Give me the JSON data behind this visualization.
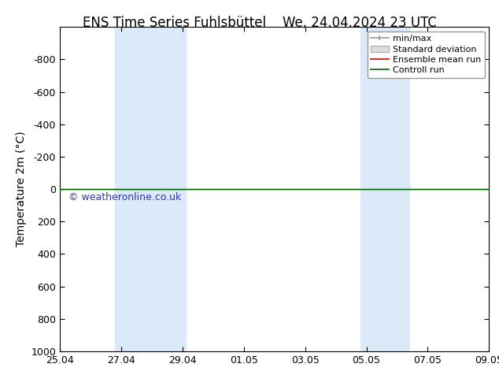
{
  "title_left": "ENS Time Series Fuhlsbüttel",
  "title_right": "We. 24.04.2024 23 UTC",
  "ylabel": "Temperature 2m (°C)",
  "ylim_bottom": 1000,
  "ylim_top": -1000,
  "yticks": [
    -800,
    -600,
    -400,
    -200,
    0,
    200,
    400,
    600,
    800,
    1000
  ],
  "xtick_labels": [
    "25.04",
    "27.04",
    "29.04",
    "01.05",
    "03.05",
    "05.05",
    "07.05",
    "09.05"
  ],
  "xtick_positions": [
    0,
    2,
    4,
    6,
    8,
    10,
    12,
    14
  ],
  "x_start": 0,
  "x_end": 14,
  "shaded_bands": [
    {
      "x_start": 1.8,
      "x_end": 2.6
    },
    {
      "x_start": 2.6,
      "x_end": 4.1
    },
    {
      "x_start": 9.8,
      "x_end": 10.6
    },
    {
      "x_start": 10.6,
      "x_end": 11.4
    }
  ],
  "shaded_color": "#daeaf8",
  "ensemble_mean_color": "#cc0000",
  "control_run_color": "#006600",
  "watermark_text": "© weatheronline.co.uk",
  "watermark_color": "#3333bb",
  "background_color": "#ffffff",
  "legend_items": [
    {
      "label": "min/max",
      "color": "#999999"
    },
    {
      "label": "Standard deviation",
      "color": "#cccccc"
    },
    {
      "label": "Ensemble mean run",
      "color": "#cc0000"
    },
    {
      "label": "Controll run",
      "color": "#006600"
    }
  ],
  "title_fontsize": 12,
  "axis_fontsize": 10,
  "tick_fontsize": 9,
  "legend_fontsize": 8
}
